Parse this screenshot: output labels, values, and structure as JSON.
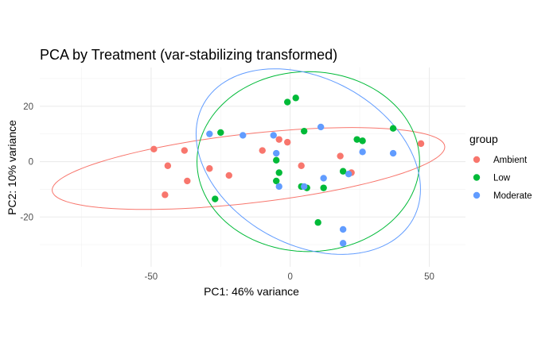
{
  "chart_data": {
    "type": "scatter",
    "title": "PCA by Treatment (var-stabilizing transformed)",
    "xlabel": "PC1: 46% variance",
    "ylabel": "PC2: 10% variance",
    "xlim": [
      -90,
      63
    ],
    "ylim": [
      -38,
      34
    ],
    "xticks": [
      -50,
      0,
      50
    ],
    "xtick_labels": [
      "-50",
      "0",
      "50"
    ],
    "yticks": [
      -20,
      0,
      20
    ],
    "ytick_labels": [
      "-20",
      "0",
      "20"
    ],
    "grid": true,
    "legend": {
      "title": "group",
      "position": "right"
    },
    "series": [
      {
        "name": "Ambient",
        "color": "#F8766D",
        "points": [
          [
            -49,
            4.5
          ],
          [
            -44,
            -1.5
          ],
          [
            -45,
            -12
          ],
          [
            -38,
            4
          ],
          [
            -37,
            -7
          ],
          [
            -29,
            -2.5
          ],
          [
            -22,
            -5
          ],
          [
            -10,
            4
          ],
          [
            -4,
            8
          ],
          [
            -1,
            7
          ],
          [
            4,
            -1.5
          ],
          [
            18,
            2
          ],
          [
            22,
            -4
          ],
          [
            47,
            6.5
          ]
        ],
        "ellipse": {
          "cx": -15,
          "cy": -2.5,
          "rx": 71,
          "ry": 12.5,
          "angle_deg": 6.5
        }
      },
      {
        "name": "Low",
        "color": "#00BA38",
        "points": [
          [
            -1,
            21.5
          ],
          [
            2,
            23
          ],
          [
            -27,
            -13.5
          ],
          [
            -25,
            10.5
          ],
          [
            5,
            11
          ],
          [
            -5,
            -7
          ],
          [
            -5,
            0.5
          ],
          [
            -4,
            -4
          ],
          [
            6,
            -9.5
          ],
          [
            4,
            -9
          ],
          [
            12,
            -9.5
          ],
          [
            10,
            -22
          ],
          [
            19,
            -3.5
          ],
          [
            24,
            8
          ],
          [
            26,
            7.5
          ],
          [
            37,
            12
          ]
        ],
        "ellipse": {
          "cx": 6.5,
          "cy": 0,
          "rx": 40,
          "ry": 32.5,
          "angle_deg": 0
        }
      },
      {
        "name": "Moderate",
        "color": "#619CFF",
        "points": [
          [
            -29,
            10
          ],
          [
            -17,
            9.5
          ],
          [
            -6,
            9.5
          ],
          [
            -5,
            3
          ],
          [
            -4,
            -9
          ],
          [
            5,
            -9
          ],
          [
            11,
            12.5
          ],
          [
            12,
            -6
          ],
          [
            19,
            -24.5
          ],
          [
            19,
            -29.5
          ],
          [
            21,
            -4.5
          ],
          [
            26,
            3.5
          ],
          [
            37,
            3
          ]
        ],
        "ellipse": {
          "cx": 6.5,
          "cy": 0,
          "rx": 43,
          "ry": 30,
          "angle_deg": -29
        }
      }
    ]
  }
}
